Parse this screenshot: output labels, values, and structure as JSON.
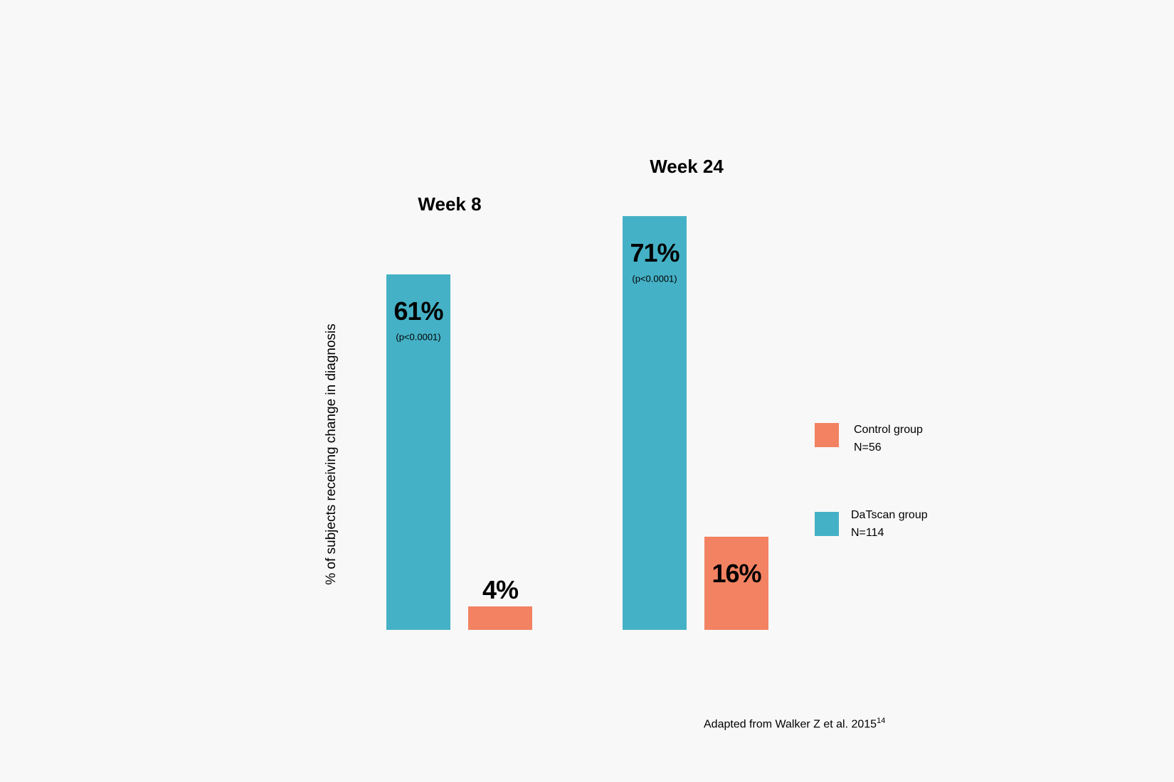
{
  "chart_data": {
    "type": "bar",
    "ylabel": "% of subjects receiving change in diagnosis",
    "categories": [
      "Week 8",
      "Week 24"
    ],
    "series": [
      {
        "name": "DaTscan group",
        "n_label": "N=114",
        "color": "#45b1c6",
        "values": [
          61,
          71
        ],
        "labels": [
          "61%",
          "71%"
        ],
        "p_values": [
          "(p<0.0001)",
          "(p<0.0001)"
        ]
      },
      {
        "name": "Control group",
        "n_label": "N=56",
        "color": "#f28262",
        "values": [
          4,
          16
        ],
        "labels": [
          "4%",
          "16%"
        ]
      }
    ],
    "legend_position": "right",
    "grid": false,
    "footnote": "Adapted from Walker Z et al. 2015",
    "footnote_ref": "14"
  }
}
